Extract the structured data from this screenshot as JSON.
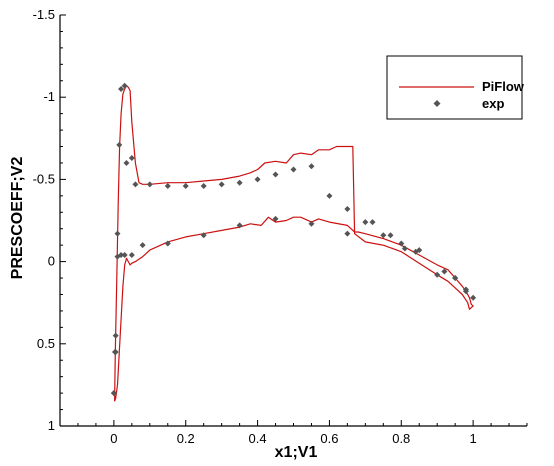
{
  "chart_data": {
    "type": "line",
    "xlabel": "x1;V1",
    "ylabel": "PRESCOEFF;V2",
    "xlim": [
      -0.15,
      1.15
    ],
    "ylim": [
      1,
      -1.5
    ],
    "y_inverted": true,
    "xticks": [
      0,
      0.2,
      0.4,
      0.6,
      0.8,
      1
    ],
    "xtick_labels": [
      "0",
      "0.2",
      "0.4",
      "0.6",
      "0.8",
      "1"
    ],
    "yticks": [
      -1.5,
      -1,
      -0.5,
      0,
      0.5,
      1
    ],
    "ytick_labels": [
      "-1.5",
      "-1",
      "-0.5",
      "0",
      "0.5",
      "1"
    ],
    "grid": false,
    "legend_position": "top-right",
    "colors": {
      "line": "#cc1111",
      "marker": "#555555"
    },
    "series": [
      {
        "name": "PiFlow",
        "kind": "line",
        "x": [
          0.002,
          0.004,
          0.008,
          0.012,
          0.016,
          0.02,
          0.025,
          0.03,
          0.035,
          0.04,
          0.045,
          0.05,
          0.06,
          0.07,
          0.08,
          0.1,
          0.15,
          0.2,
          0.25,
          0.3,
          0.35,
          0.38,
          0.4,
          0.42,
          0.45,
          0.48,
          0.5,
          0.52,
          0.55,
          0.57,
          0.6,
          0.62,
          0.65,
          0.665,
          0.67,
          0.7,
          0.75,
          0.8,
          0.85,
          0.9,
          0.93,
          0.95,
          0.97,
          0.985,
          0.99,
          0.995,
          1.0,
          0.995,
          0.99,
          0.98,
          0.97,
          0.95,
          0.93,
          0.9,
          0.85,
          0.8,
          0.75,
          0.7,
          0.68,
          0.67,
          0.66,
          0.65,
          0.6,
          0.57,
          0.55,
          0.52,
          0.5,
          0.48,
          0.45,
          0.43,
          0.41,
          0.38,
          0.35,
          0.3,
          0.25,
          0.2,
          0.15,
          0.1,
          0.08,
          0.06,
          0.05,
          0.045,
          0.04,
          0.035,
          0.03,
          0.025,
          0.02,
          0.015,
          0.01,
          0.005,
          0.002
        ],
        "y": [
          0.85,
          0.55,
          0.1,
          -0.35,
          -0.7,
          -0.9,
          -1.02,
          -1.05,
          -1.07,
          -1.06,
          -1.04,
          -0.85,
          -0.6,
          -0.48,
          -0.47,
          -0.47,
          -0.48,
          -0.48,
          -0.49,
          -0.5,
          -0.52,
          -0.54,
          -0.56,
          -0.6,
          -0.61,
          -0.6,
          -0.65,
          -0.66,
          -0.65,
          -0.68,
          -0.68,
          -0.7,
          -0.7,
          -0.7,
          -0.17,
          -0.12,
          -0.1,
          -0.06,
          0.01,
          0.08,
          0.12,
          0.16,
          0.2,
          0.25,
          0.29,
          0.28,
          0.27,
          0.26,
          0.22,
          0.18,
          0.15,
          0.1,
          0.05,
          0.02,
          -0.04,
          -0.1,
          -0.14,
          -0.17,
          -0.18,
          -0.18,
          -0.2,
          -0.22,
          -0.24,
          -0.26,
          -0.24,
          -0.27,
          -0.27,
          -0.25,
          -0.24,
          -0.27,
          -0.22,
          -0.23,
          -0.21,
          -0.19,
          -0.17,
          -0.15,
          -0.12,
          -0.07,
          -0.03,
          0.0,
          0.01,
          0.02,
          0.0,
          -0.02,
          0.02,
          0.15,
          0.35,
          0.55,
          0.75,
          0.83,
          0.85
        ]
      },
      {
        "name": "exp",
        "kind": "scatter",
        "x": [
          0.0,
          0.003,
          0.005,
          0.01,
          0.015,
          0.02,
          0.03,
          0.035,
          0.05,
          0.06,
          0.1,
          0.15,
          0.2,
          0.25,
          0.3,
          0.35,
          0.4,
          0.45,
          0.5,
          0.55,
          0.6,
          0.65,
          0.7,
          0.75,
          0.8,
          0.85,
          0.9,
          0.95,
          0.98,
          1.0,
          0.0,
          0.005,
          0.01,
          0.02,
          0.03,
          0.05,
          0.08,
          0.15,
          0.25,
          0.35,
          0.45,
          0.55,
          0.65,
          0.72,
          0.77,
          0.81,
          0.84,
          0.92,
          0.95,
          0.98
        ],
        "y": [
          0.8,
          0.55,
          0.45,
          -0.17,
          -0.71,
          -1.05,
          -1.07,
          -0.6,
          -0.63,
          -0.47,
          -0.47,
          -0.46,
          -0.46,
          -0.46,
          -0.47,
          -0.48,
          -0.5,
          -0.53,
          -0.56,
          -0.58,
          -0.4,
          -0.32,
          -0.24,
          -0.16,
          -0.11,
          -0.07,
          0.08,
          0.1,
          0.18,
          0.22,
          0.8,
          0.55,
          -0.03,
          -0.04,
          -0.04,
          -0.04,
          -0.1,
          -0.11,
          -0.16,
          -0.22,
          -0.26,
          -0.23,
          -0.17,
          -0.24,
          -0.16,
          -0.08,
          -0.06,
          0.06,
          0.1,
          0.17
        ]
      }
    ]
  }
}
